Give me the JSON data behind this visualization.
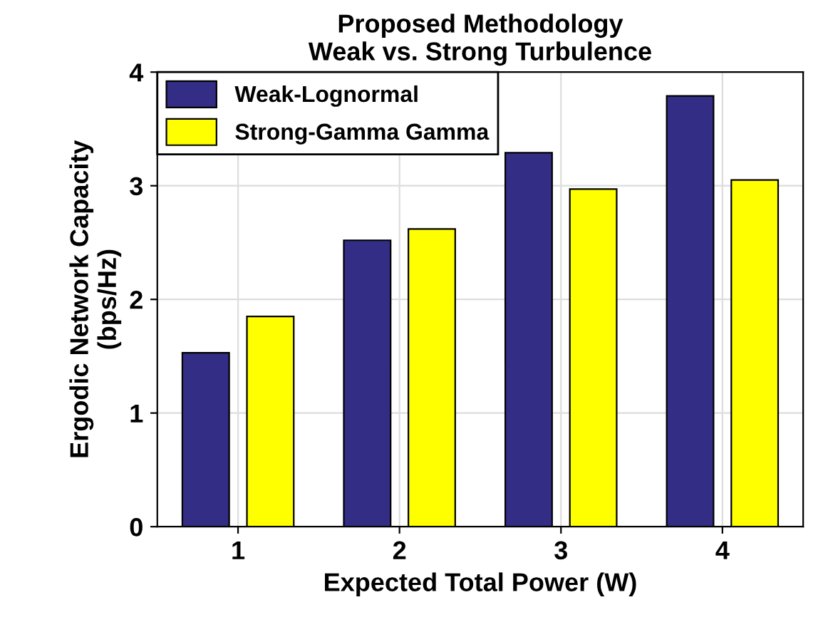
{
  "chart_data": {
    "type": "bar",
    "title": "Proposed Methodology\nWeak vs. Strong Turbulence",
    "xlabel": "Expected Total Power (W)",
    "ylabel": "Ergodic Network Capacity\n(bps/Hz)",
    "categories": [
      "1",
      "2",
      "3",
      "4"
    ],
    "series": [
      {
        "name": "Weak-Lognormal",
        "color": "#332d86",
        "values": [
          1.53,
          2.52,
          3.29,
          3.79
        ]
      },
      {
        "name": "Strong-Gamma Gamma",
        "color": "#ffff00",
        "values": [
          1.85,
          2.62,
          2.97,
          3.05
        ]
      }
    ],
    "ylim": [
      0,
      4
    ],
    "yticks": [
      0,
      1,
      2,
      3,
      4
    ],
    "grid": true,
    "legend": "top left"
  }
}
